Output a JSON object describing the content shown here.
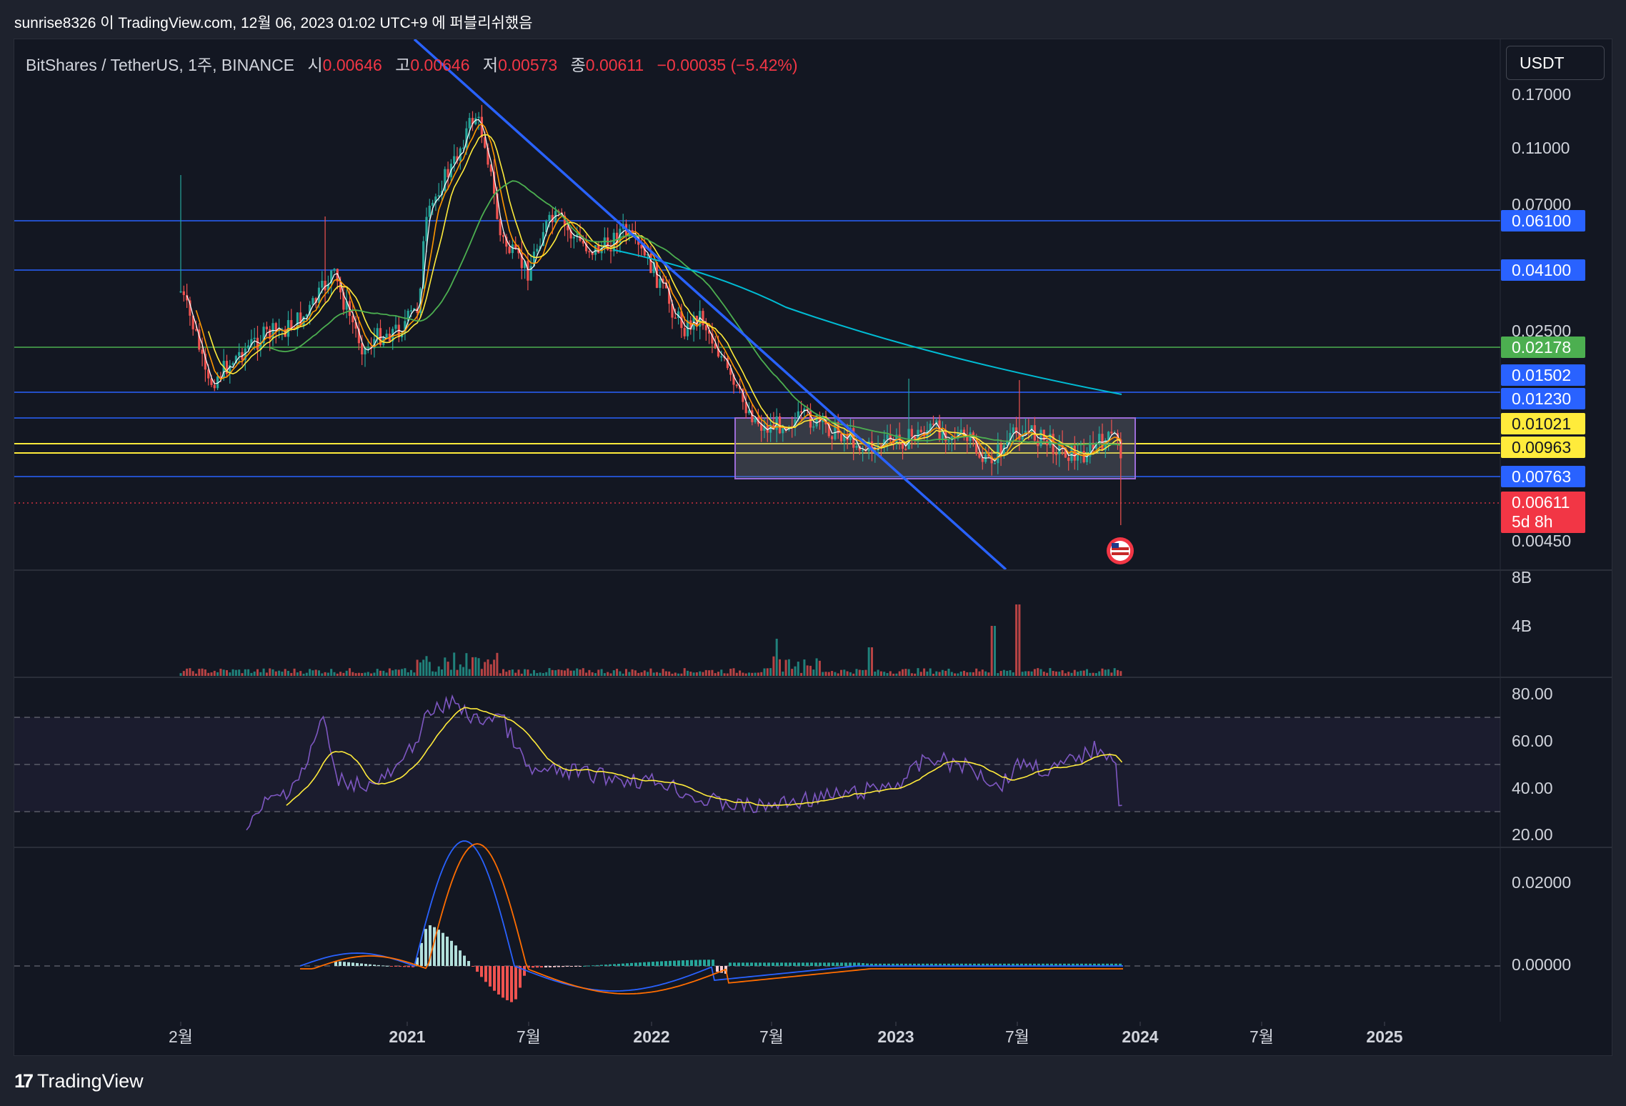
{
  "caption": "sunrise8326 이 TradingView.com, 12월 06, 2023 01:02 UTC+9 에 퍼블리쉬했음",
  "legend": {
    "symbol": "BitShares / TetherUS, 1주, BINANCE",
    "open_label": "시",
    "open": "0.00646",
    "high_label": "고",
    "high": "0.00646",
    "low_label": "저",
    "low": "0.00573",
    "close_label": "종",
    "close": "0.00611",
    "change": "−0.00035 (−5.42%)"
  },
  "currency_button": "USDT",
  "price_axis": {
    "ticks": [
      "0.17000",
      "0.11000",
      "0.07000",
      "0.02500",
      "0.00450"
    ],
    "tags": [
      {
        "value": "0.06100",
        "color": "#2962ff",
        "text_color": "#ffffff"
      },
      {
        "value": "0.04100",
        "color": "#2962ff",
        "text_color": "#ffffff"
      },
      {
        "value": "0.02178",
        "color": "#4caf50",
        "text_color": "#ffffff"
      },
      {
        "value": "0.01502",
        "color": "#2962ff",
        "text_color": "#ffffff"
      },
      {
        "value": "0.01230",
        "color": "#2962ff",
        "text_color": "#ffffff"
      },
      {
        "value": "0.01021",
        "color": "#ffeb3b",
        "text_color": "#131722"
      },
      {
        "value": "0.00963",
        "color": "#ffeb3b",
        "text_color": "#131722"
      },
      {
        "value": "0.00763",
        "color": "#2962ff",
        "text_color": "#ffffff"
      },
      {
        "value": "0.00611",
        "color": "#f23645",
        "text_color": "#ffffff",
        "sub": "5d 8h"
      }
    ]
  },
  "volume_axis": {
    "ticks": [
      "8B",
      "4B"
    ]
  },
  "rsi_axis": {
    "ticks": [
      "80.00",
      "60.00",
      "40.00",
      "20.00"
    ]
  },
  "macd_axis": {
    "ticks": [
      "0.02000",
      "0.00000"
    ]
  },
  "time_axis": {
    "labels": [
      "2월",
      "2021",
      "7월",
      "2022",
      "7월",
      "2023",
      "7월",
      "2024",
      "7월",
      "2025"
    ]
  },
  "footer": {
    "brand": "TradingView",
    "logo_glyph": "17"
  },
  "colors": {
    "background": "#131722",
    "up": "#26a69a",
    "down": "#ef5350",
    "trendline": "#2962ff",
    "ma_200": "#00bcd4",
    "ma_100": "#4caf50",
    "ma_50": "#ffeb3b",
    "ma_20": "#ff9800",
    "ma_10": "#ffffff",
    "rsi": "#7e57c2",
    "rsi_ma": "#ffeb3b",
    "macd": "#2962ff",
    "signal": "#ff6d00"
  },
  "chart_data": {
    "type": "candlestick",
    "series": [
      {
        "name": "BitShares / TetherUS",
        "timeframe": "1주",
        "exchange": "BINANCE",
        "last": {
          "open": 0.00646,
          "high": 0.00646,
          "low": 0.00573,
          "close": 0.00611,
          "change": -0.00035,
          "change_pct": -5.42
        }
      }
    ],
    "horizontal_levels": [
      0.061,
      0.041,
      0.02178,
      0.01502,
      0.0123,
      0.01021,
      0.00963,
      0.00763
    ],
    "scale": "log",
    "panels": [
      "price",
      "volume",
      "RSI",
      "MACD"
    ],
    "rsi_levels": [
      70,
      50,
      30
    ]
  }
}
